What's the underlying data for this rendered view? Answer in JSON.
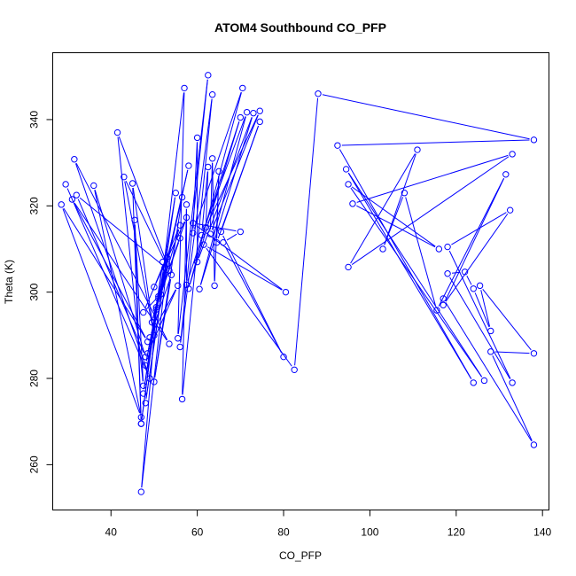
{
  "chart_data": {
    "type": "scatter",
    "title": "ATOM4 Southbound CO_PFP",
    "xlabel": "CO_PFP",
    "ylabel": "Theta (K)",
    "xlim": [
      26.5,
      141.5
    ],
    "ylim": [
      249.5,
      355.5
    ],
    "xticks": [
      40,
      60,
      80,
      100,
      120,
      140
    ],
    "yticks": [
      260,
      280,
      300,
      320,
      340
    ],
    "grid": false,
    "legend": "none",
    "connected": true,
    "color": "#0000ff",
    "points": [
      {
        "x": 29.5,
        "y": 325.0
      },
      {
        "x": 49.0,
        "y": 280.0
      },
      {
        "x": 31.5,
        "y": 330.8
      },
      {
        "x": 53.5,
        "y": 288.0
      },
      {
        "x": 31.0,
        "y": 321.5
      },
      {
        "x": 48.5,
        "y": 288.5
      },
      {
        "x": 28.5,
        "y": 320.3
      },
      {
        "x": 47.0,
        "y": 271.0
      },
      {
        "x": 36.0,
        "y": 324.7
      },
      {
        "x": 48.0,
        "y": 285.0
      },
      {
        "x": 32.0,
        "y": 322.5
      },
      {
        "x": 53.5,
        "y": 305.0
      },
      {
        "x": 43.0,
        "y": 326.7
      },
      {
        "x": 50.0,
        "y": 290.0
      },
      {
        "x": 45.0,
        "y": 325.2
      },
      {
        "x": 47.0,
        "y": 269.5
      },
      {
        "x": 45.5,
        "y": 316.7
      },
      {
        "x": 47.5,
        "y": 278.3
      },
      {
        "x": 41.5,
        "y": 337.0
      },
      {
        "x": 53.0,
        "y": 306.5
      },
      {
        "x": 47.0,
        "y": 253.7
      },
      {
        "x": 50.5,
        "y": 296.0
      },
      {
        "x": 47.0,
        "y": 269.5
      },
      {
        "x": 52.0,
        "y": 307.0
      },
      {
        "x": 47.5,
        "y": 276.5
      },
      {
        "x": 55.0,
        "y": 323.0
      },
      {
        "x": 48.0,
        "y": 274.3
      },
      {
        "x": 53.0,
        "y": 308.0
      },
      {
        "x": 47.5,
        "y": 295.3
      },
      {
        "x": 51.0,
        "y": 299.0
      },
      {
        "x": 48.0,
        "y": 283.0
      },
      {
        "x": 52.5,
        "y": 305.7
      },
      {
        "x": 48.5,
        "y": 285.8
      },
      {
        "x": 55.5,
        "y": 301.5
      },
      {
        "x": 49.0,
        "y": 289.5
      },
      {
        "x": 54.0,
        "y": 304.0
      },
      {
        "x": 50.0,
        "y": 279.2
      },
      {
        "x": 56.5,
        "y": 322.0
      },
      {
        "x": 49.5,
        "y": 293.0
      },
      {
        "x": 56.0,
        "y": 315.5
      },
      {
        "x": 50.0,
        "y": 301.2
      },
      {
        "x": 57.5,
        "y": 317.3
      },
      {
        "x": 50.5,
        "y": 296.5
      },
      {
        "x": 56.0,
        "y": 312.5
      },
      {
        "x": 51.0,
        "y": 298.5
      },
      {
        "x": 58.0,
        "y": 329.3
      },
      {
        "x": 51.5,
        "y": 299.5
      },
      {
        "x": 57.0,
        "y": 347.3
      },
      {
        "x": 55.5,
        "y": 289.3
      },
      {
        "x": 62.5,
        "y": 350.3
      },
      {
        "x": 56.0,
        "y": 287.3
      },
      {
        "x": 63.5,
        "y": 345.8
      },
      {
        "x": 56.5,
        "y": 275.2
      },
      {
        "x": 57.5,
        "y": 320.3
      },
      {
        "x": 57.5,
        "y": 301.7
      },
      {
        "x": 70.0,
        "y": 340.5
      },
      {
        "x": 58.0,
        "y": 300.8
      },
      {
        "x": 70.5,
        "y": 347.3
      },
      {
        "x": 59.0,
        "y": 313.7
      },
      {
        "x": 60.0,
        "y": 335.8
      },
      {
        "x": 60.0,
        "y": 307.0
      },
      {
        "x": 73.0,
        "y": 341.5
      },
      {
        "x": 60.5,
        "y": 300.7
      },
      {
        "x": 71.5,
        "y": 341.7
      },
      {
        "x": 61.0,
        "y": 313.2
      },
      {
        "x": 62.5,
        "y": 329.0
      },
      {
        "x": 62.0,
        "y": 315.0
      },
      {
        "x": 74.5,
        "y": 342.0
      },
      {
        "x": 63.0,
        "y": 313.5
      },
      {
        "x": 63.5,
        "y": 331.0
      },
      {
        "x": 64.0,
        "y": 301.5
      },
      {
        "x": 65.0,
        "y": 328.0
      },
      {
        "x": 64.5,
        "y": 311.5
      },
      {
        "x": 74.5,
        "y": 339.5
      },
      {
        "x": 65.5,
        "y": 314.0
      },
      {
        "x": 80.0,
        "y": 285.0
      },
      {
        "x": 66.0,
        "y": 311.5
      },
      {
        "x": 70.0,
        "y": 314.0
      },
      {
        "x": 59.0,
        "y": 316.0
      },
      {
        "x": 80.5,
        "y": 300.0
      },
      {
        "x": 61.5,
        "y": 311.0
      },
      {
        "x": 82.5,
        "y": 282.0
      },
      {
        "x": 88.0,
        "y": 346.0
      },
      {
        "x": 138.0,
        "y": 335.3
      },
      {
        "x": 92.5,
        "y": 334.0
      },
      {
        "x": 124.0,
        "y": 279.0
      },
      {
        "x": 94.5,
        "y": 328.5
      },
      {
        "x": 126.5,
        "y": 279.5
      },
      {
        "x": 95.0,
        "y": 325.0
      },
      {
        "x": 116.0,
        "y": 310.0
      },
      {
        "x": 96.0,
        "y": 320.5
      },
      {
        "x": 133.0,
        "y": 332.0
      },
      {
        "x": 95.0,
        "y": 305.8
      },
      {
        "x": 111.0,
        "y": 333.0
      },
      {
        "x": 103.0,
        "y": 310.0
      },
      {
        "x": 108.0,
        "y": 323.0
      },
      {
        "x": 115.5,
        "y": 295.8
      },
      {
        "x": 131.5,
        "y": 327.3
      },
      {
        "x": 117.0,
        "y": 297.0
      },
      {
        "x": 132.5,
        "y": 319.0
      },
      {
        "x": 118.0,
        "y": 310.5
      },
      {
        "x": 133.0,
        "y": 279.0
      },
      {
        "x": 118.0,
        "y": 304.3
      },
      {
        "x": 122.0,
        "y": 304.7
      },
      {
        "x": 124.0,
        "y": 300.8
      },
      {
        "x": 128.0,
        "y": 291.0
      },
      {
        "x": 125.5,
        "y": 301.5
      },
      {
        "x": 138.0,
        "y": 285.8
      },
      {
        "x": 128.0,
        "y": 286.2
      },
      {
        "x": 138.0,
        "y": 264.6
      },
      {
        "x": 117.0,
        "y": 298.5
      }
    ]
  }
}
